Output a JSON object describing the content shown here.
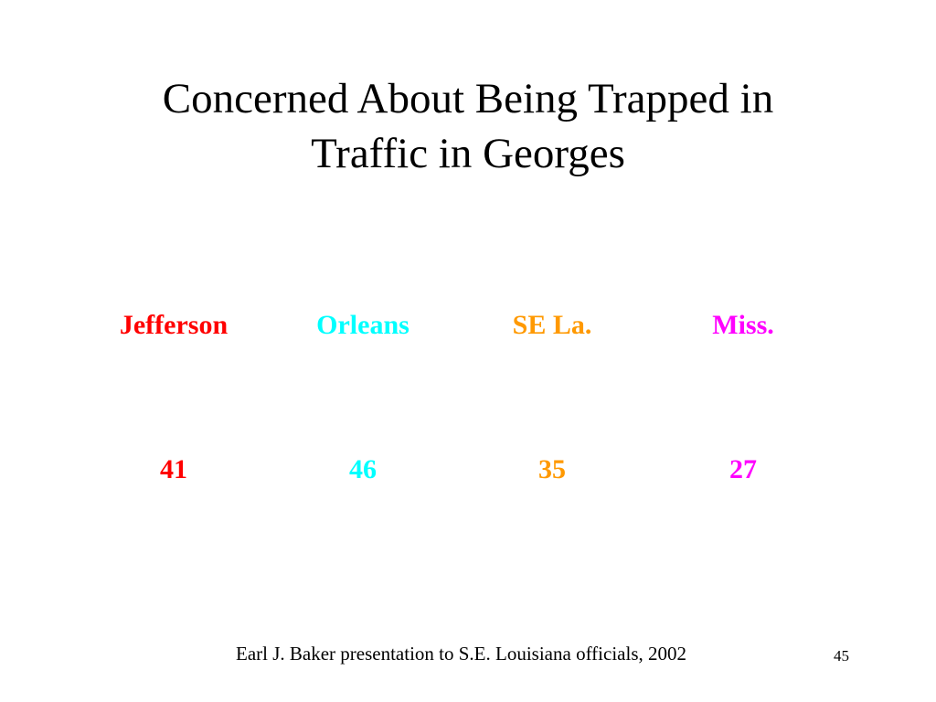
{
  "slide": {
    "title_lines": [
      "Concerned About Being Trapped in",
      "Traffic in Georges"
    ],
    "footer": "Earl J. Baker presentation to S.E. Louisiana officials, 2002",
    "page_number": "45"
  },
  "chart_data": {
    "type": "table",
    "categories": [
      "Jefferson",
      "Orleans",
      "SE La.",
      "Miss."
    ],
    "values": [
      "41",
      "46",
      "35",
      "27"
    ],
    "colors": [
      "#ff0000",
      "#00ffff",
      "#ff9900",
      "#ff00ff"
    ]
  }
}
